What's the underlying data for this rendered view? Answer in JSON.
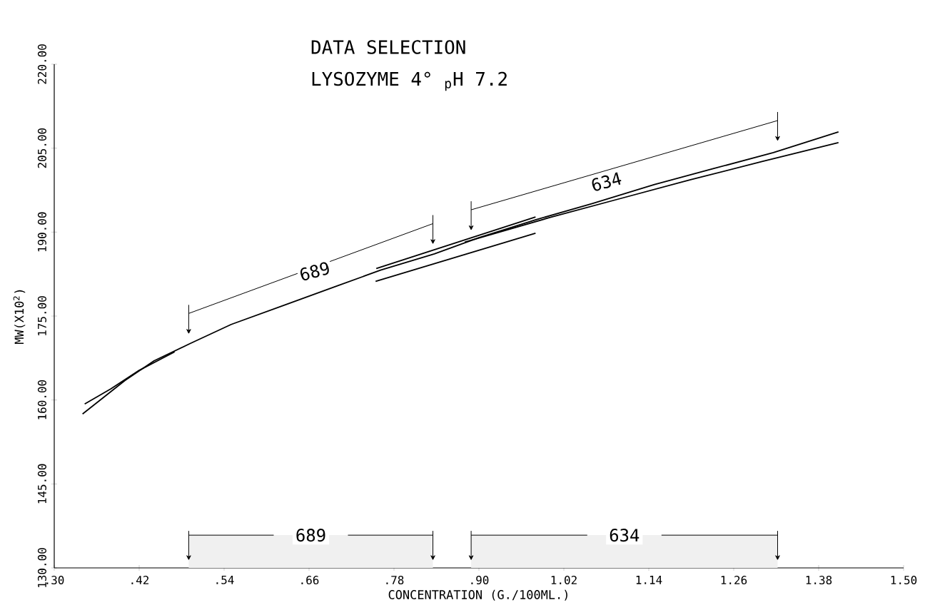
{
  "chart_data": {
    "type": "line",
    "title": "DATA SELECTION",
    "subtitle": "LYSOZYME  4°  $_{p}$H 7.2",
    "xlabel": "CONCENTRATION (G./100ML.)",
    "ylabel": "MW(X10$^{2}$)",
    "xlim": [
      0.3,
      1.5
    ],
    "ylim": [
      130,
      220
    ],
    "xticks": [
      {
        "value": 0.3,
        "label": ".30"
      },
      {
        "value": 0.42,
        "label": ".42"
      },
      {
        "value": 0.54,
        "label": ".54"
      },
      {
        "value": 0.66,
        "label": ".66"
      },
      {
        "value": 0.78,
        "label": ".78"
      },
      {
        "value": 0.9,
        "label": ".90"
      },
      {
        "value": 1.02,
        "label": "1.02"
      },
      {
        "value": 1.14,
        "label": "1.14"
      },
      {
        "value": 1.26,
        "label": "1.26"
      },
      {
        "value": 1.38,
        "label": "1.38"
      },
      {
        "value": 1.5,
        "label": "1.50"
      }
    ],
    "yticks": [
      {
        "value": 130,
        "label": "130.00"
      },
      {
        "value": 145,
        "label": "145.00"
      },
      {
        "value": 160,
        "label": "160.00"
      },
      {
        "value": 175,
        "label": "175.00"
      },
      {
        "value": 190,
        "label": "190.00"
      },
      {
        "value": 205,
        "label": "205.00"
      },
      {
        "value": 220,
        "label": "220.00"
      }
    ],
    "series": [
      {
        "color": "#000000",
        "x": [
          0.34,
          0.4,
          0.441,
          0.492,
          0.55,
          0.626,
          0.7,
          0.761,
          0.837,
          0.9,
          0.98,
          1.06,
          1.148,
          1.23,
          1.316,
          1.408
        ],
        "values": [
          157.5,
          163.5,
          167.0,
          170.1,
          173.5,
          177.0,
          180.4,
          183.2,
          186.1,
          189.0,
          192.2,
          195.1,
          198.5,
          201.3,
          204.2,
          207.9
        ]
      },
      {
        "color": "#000000",
        "x": [
          0.343,
          0.38,
          0.42,
          0.47
        ],
        "values": [
          159.3,
          162.0,
          165.3,
          168.6
        ]
      },
      {
        "color": "#000000",
        "x": [
          0.755,
          0.98
        ],
        "values": [
          183.5,
          192.7
        ]
      },
      {
        "color": "#000000",
        "x": [
          0.754,
          0.98
        ],
        "values": [
          181.2,
          189.8
        ]
      },
      {
        "color": "#000000",
        "x": [
          0.88,
          1.0,
          1.1,
          1.2,
          1.3,
          1.408
        ],
        "values": [
          188.2,
          192.6,
          196.0,
          199.4,
          202.6,
          206.0
        ]
      }
    ],
    "bands": [
      {
        "axis": "x",
        "from": 0.49,
        "to": 0.835,
        "label": "689",
        "color": "#f0f0f0"
      },
      {
        "axis": "x",
        "from": 0.889,
        "to": 1.322,
        "label": "634",
        "color": "#f0f0f0"
      }
    ],
    "annotations": [
      {
        "text": "689",
        "x": 0.668,
        "y": 183.0
      },
      {
        "text": "634",
        "x": 1.08,
        "y": 199.0
      }
    ],
    "marker": "none",
    "line_style": "solid",
    "grid": false
  }
}
